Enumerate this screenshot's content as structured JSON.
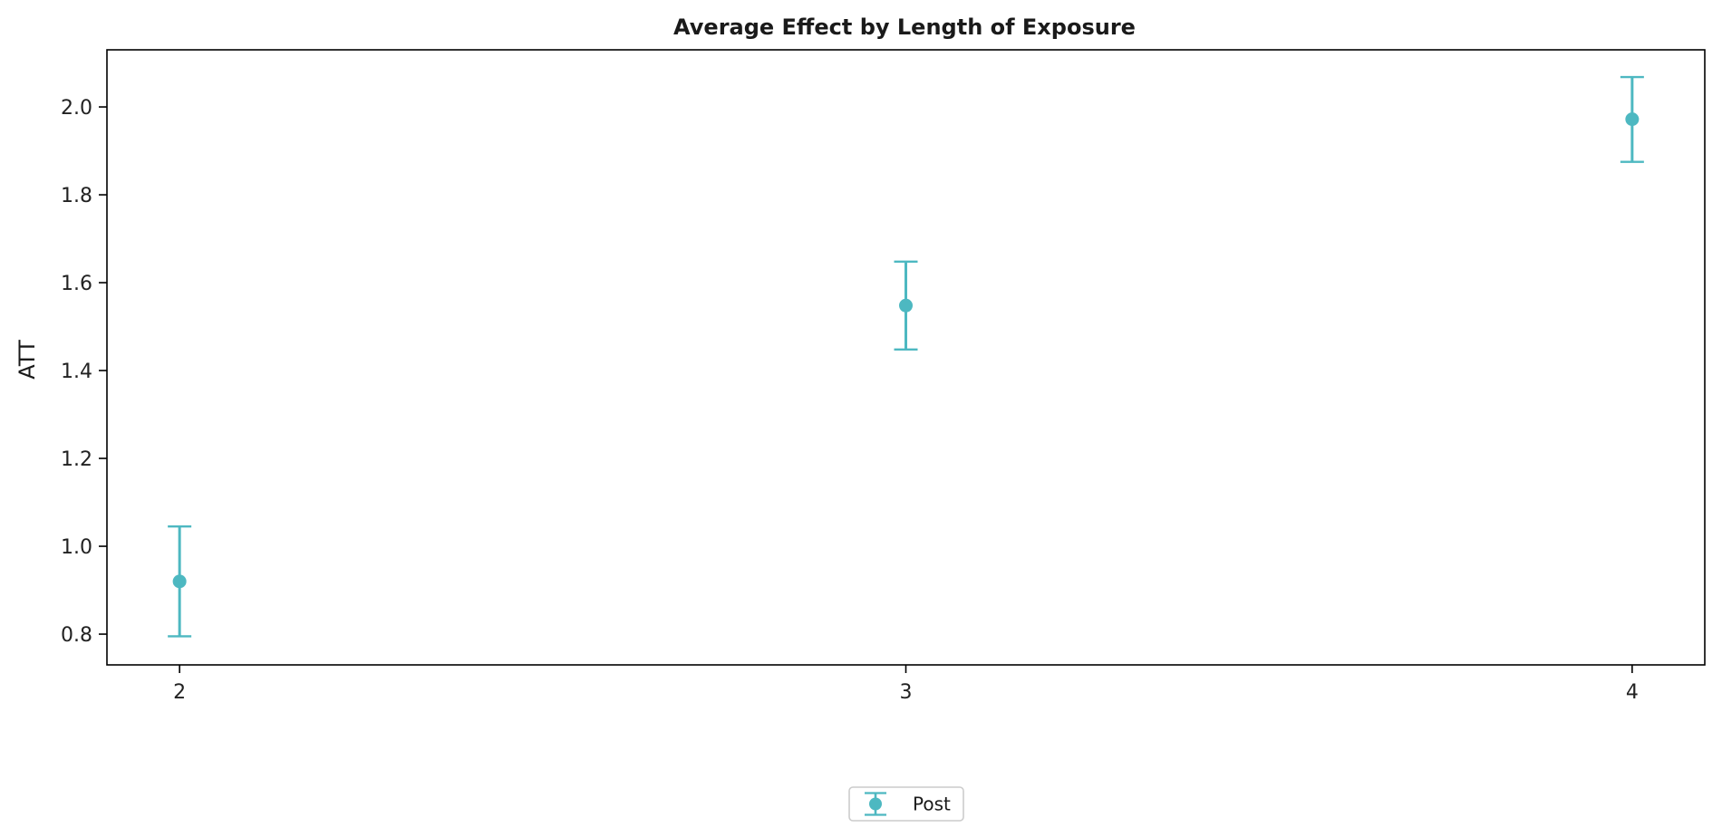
{
  "chart_data": {
    "type": "scatter",
    "title": "Average Effect by Length of Exposure",
    "xlabel": "",
    "ylabel": "ATT",
    "x_ticks": [
      "2",
      "3",
      "4"
    ],
    "y_ticks": [
      "0.8",
      "1.0",
      "1.2",
      "1.4",
      "1.6",
      "1.8",
      "2.0"
    ],
    "xlim": [
      1.9,
      4.1
    ],
    "ylim": [
      0.73,
      2.13
    ],
    "grid": false,
    "legend_position": "bottom-center",
    "series": [
      {
        "name": "Post",
        "color": "#4db8c1",
        "points": [
          {
            "x": 2,
            "y": 0.92,
            "lower": 0.795,
            "upper": 1.045
          },
          {
            "x": 3,
            "y": 1.548,
            "lower": 1.448,
            "upper": 1.648
          },
          {
            "x": 4,
            "y": 1.972,
            "lower": 1.875,
            "upper": 2.068
          }
        ]
      }
    ]
  }
}
